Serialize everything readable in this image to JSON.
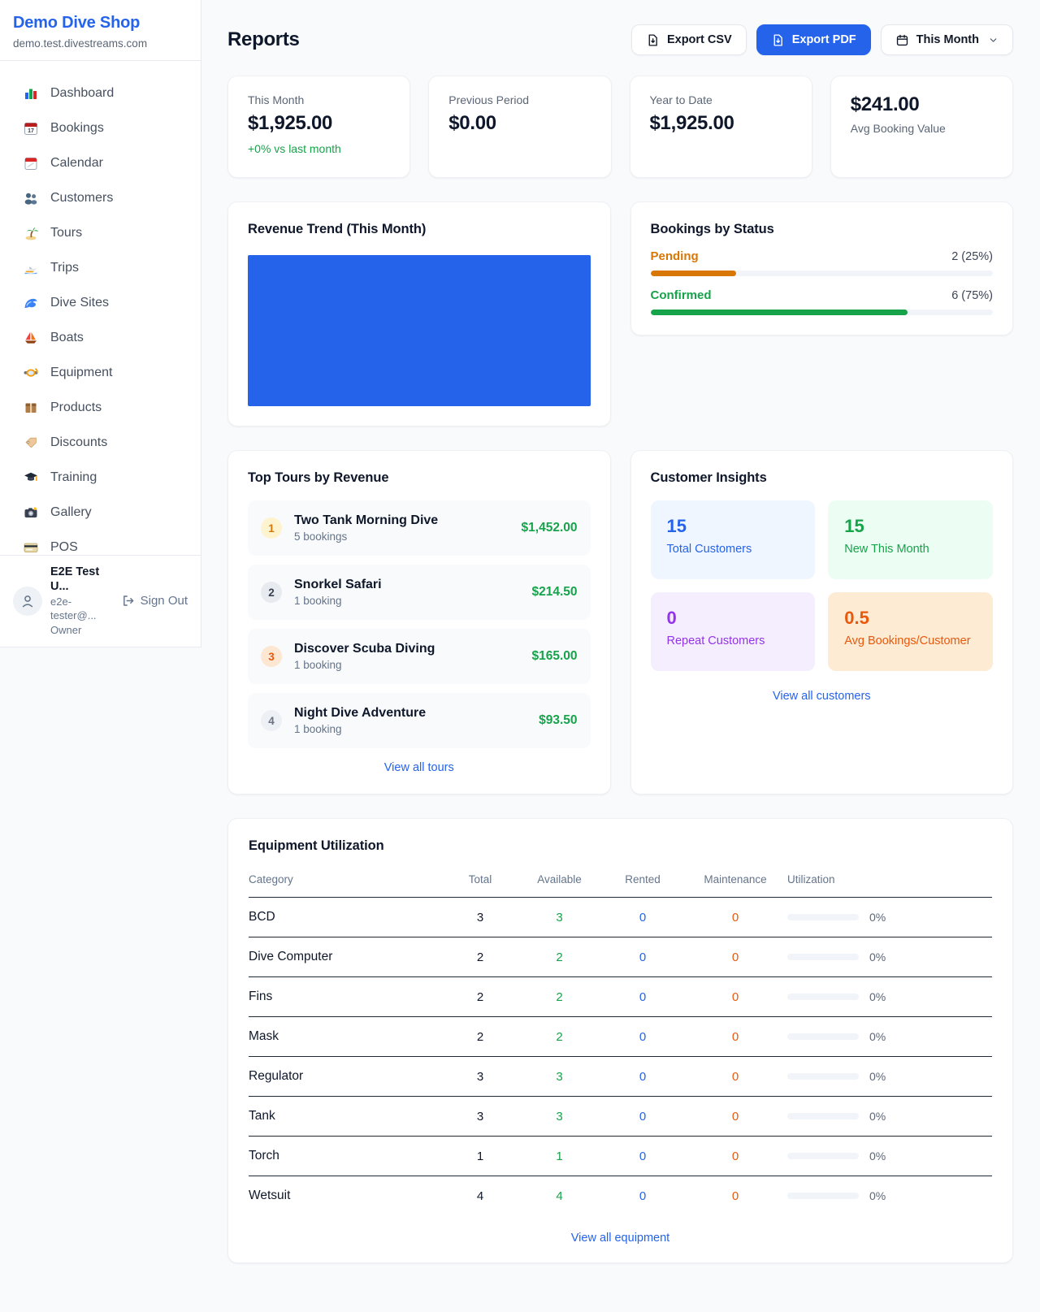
{
  "colors": {
    "brand_blue": "#2563eb",
    "green": "#16a34a",
    "orange": "#ea580c",
    "amber": "#d97706",
    "purple": "#9333ea",
    "chart_bar": "#2563eb"
  },
  "sidebar": {
    "shop_name": "Demo Dive Shop",
    "domain": "demo.test.divestreams.com",
    "items": [
      {
        "label": "Dashboard",
        "icon": "bar-chart-icon"
      },
      {
        "label": "Bookings",
        "icon": "calendar-date-icon"
      },
      {
        "label": "Calendar",
        "icon": "tear-calendar-icon"
      },
      {
        "label": "Customers",
        "icon": "people-icon"
      },
      {
        "label": "Tours",
        "icon": "island-icon"
      },
      {
        "label": "Trips",
        "icon": "speedboat-icon"
      },
      {
        "label": "Dive Sites",
        "icon": "wave-icon"
      },
      {
        "label": "Boats",
        "icon": "sailboat-icon"
      },
      {
        "label": "Equipment",
        "icon": "dive-mask-icon"
      },
      {
        "label": "Products",
        "icon": "package-icon"
      },
      {
        "label": "Discounts",
        "icon": "tag-icon"
      },
      {
        "label": "Training",
        "icon": "grad-cap-icon"
      },
      {
        "label": "Gallery",
        "icon": "camera-icon"
      },
      {
        "label": "POS",
        "icon": "credit-card-icon"
      }
    ],
    "user": {
      "name": "E2E Test U...",
      "email": "e2e-tester@...",
      "role": "Owner",
      "sign_out_label": "Sign Out"
    }
  },
  "header": {
    "title": "Reports",
    "export_csv_label": "Export CSV",
    "export_pdf_label": "Export PDF",
    "period_label": "This Month"
  },
  "stats": [
    {
      "label": "This Month",
      "value": "$1,925.00",
      "delta": "+0% vs last month"
    },
    {
      "label": "Previous Period",
      "value": "$0.00"
    },
    {
      "label": "Year to Date",
      "value": "$1,925.00"
    },
    {
      "label": "Avg Booking Value",
      "value": "$241.00",
      "value_first": true
    }
  ],
  "revenue_trend": {
    "title": "Revenue Trend (This Month)",
    "chart": {
      "type": "bar",
      "bar_color": "#2563eb",
      "note": "single bar filling entire plot area"
    }
  },
  "bookings_by_status": {
    "title": "Bookings by Status",
    "statuses": [
      {
        "label": "Pending",
        "display": "2 (25%)",
        "count": 2,
        "percent": 25,
        "color": "#d97706"
      },
      {
        "label": "Confirmed",
        "display": "6 (75%)",
        "count": 6,
        "percent": 75,
        "color": "#16a34a"
      }
    ]
  },
  "top_tours": {
    "title": "Top Tours by Revenue",
    "view_all_label": "View all tours",
    "tours": [
      {
        "rank": 1,
        "name": "Two Tank Morning Dive",
        "bookings": "5 bookings",
        "revenue": "$1,452.00"
      },
      {
        "rank": 2,
        "name": "Snorkel Safari",
        "bookings": "1 booking",
        "revenue": "$214.50"
      },
      {
        "rank": 3,
        "name": "Discover Scuba Diving",
        "bookings": "1 booking",
        "revenue": "$165.00"
      },
      {
        "rank": 4,
        "name": "Night Dive Adventure",
        "bookings": "1 booking",
        "revenue": "$93.50"
      }
    ]
  },
  "customer_insights": {
    "title": "Customer Insights",
    "view_all_label": "View all customers",
    "tiles": [
      {
        "value": "15",
        "label": "Total Customers",
        "bg": "#eff6ff",
        "fg": "#2563eb"
      },
      {
        "value": "15",
        "label": "New This Month",
        "bg": "#ecfdf3",
        "fg": "#16a34a"
      },
      {
        "value": "0",
        "label": "Repeat Customers",
        "bg": "#f5eefe",
        "fg": "#9333ea"
      },
      {
        "value": "0.5",
        "label": "Avg Bookings/Customer",
        "bg": "#fdeBD3",
        "fg": "#ea580c"
      }
    ]
  },
  "equipment": {
    "title": "Equipment Utilization",
    "view_all_label": "View all equipment",
    "columns": [
      "Category",
      "Total",
      "Available",
      "Rented",
      "Maintenance",
      "Utilization"
    ],
    "rows": [
      {
        "category": "BCD",
        "total": "3",
        "available": "3",
        "rented": "0",
        "maintenance": "0",
        "utilization": "0%"
      },
      {
        "category": "Dive Computer",
        "total": "2",
        "available": "2",
        "rented": "0",
        "maintenance": "0",
        "utilization": "0%"
      },
      {
        "category": "Fins",
        "total": "2",
        "available": "2",
        "rented": "0",
        "maintenance": "0",
        "utilization": "0%"
      },
      {
        "category": "Mask",
        "total": "2",
        "available": "2",
        "rented": "0",
        "maintenance": "0",
        "utilization": "0%"
      },
      {
        "category": "Regulator",
        "total": "3",
        "available": "3",
        "rented": "0",
        "maintenance": "0",
        "utilization": "0%"
      },
      {
        "category": "Tank",
        "total": "3",
        "available": "3",
        "rented": "0",
        "maintenance": "0",
        "utilization": "0%"
      },
      {
        "category": "Torch",
        "total": "1",
        "available": "1",
        "rented": "0",
        "maintenance": "0",
        "utilization": "0%"
      },
      {
        "category": "Wetsuit",
        "total": "4",
        "available": "4",
        "rented": "0",
        "maintenance": "0",
        "utilization": "0%"
      }
    ]
  }
}
